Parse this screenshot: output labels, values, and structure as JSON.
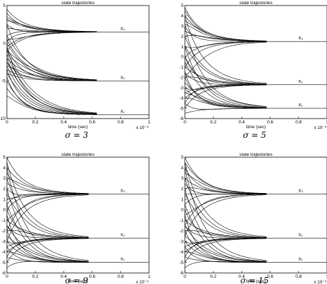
{
  "chart_data": [
    {
      "type": "line",
      "title": "state trajectories",
      "xlabel": "time (sec)",
      "x_exponent_label": "x 10⁻³",
      "caption": "σ = 3",
      "xlim": [
        0,
        1
      ],
      "ylim": [
        -10,
        5
      ],
      "xticks": [
        "0",
        "0.2",
        "0.4",
        "0.6",
        "0.8",
        "1"
      ],
      "yticks": [
        "-10",
        "-5",
        "0",
        "5"
      ],
      "grid": false,
      "steady_states": [
        {
          "name": "x₃",
          "value": 1.5
        },
        {
          "name": "x₂",
          "value": -5
        },
        {
          "name": "x₁",
          "value": -9.5
        }
      ],
      "settling_time": 0.55,
      "initial_values": [
        [
          4.5,
          3.5,
          3.0,
          2.5,
          2.0,
          1.0,
          0.5,
          -0.5,
          -1.0,
          4.0,
          3.2,
          0.2
        ],
        [
          0.5,
          -2.0,
          -3.0,
          -0.5,
          1.0,
          -1.5,
          -2.5,
          -4.0,
          -1.0,
          2.5,
          -3.5,
          0.0
        ],
        [
          -2.0,
          -3.0,
          -4.0,
          -4.5,
          -1.5,
          -2.5,
          -3.5,
          -5.0,
          -1.0,
          -0.5,
          -6.0,
          -7.0
        ]
      ]
    },
    {
      "type": "line",
      "title": "state trajectories",
      "xlabel": "time (sec)",
      "x_exponent_label": "x 10⁻³",
      "caption": "σ = 5",
      "xlim": [
        0,
        1
      ],
      "ylim": [
        -6,
        5
      ],
      "xticks": [
        "0",
        "0.2",
        "0.4",
        "0.6",
        "0.8",
        "1"
      ],
      "yticks": [
        "-6",
        "-5",
        "-4",
        "-3",
        "-2",
        "-1",
        "0",
        "1",
        "2",
        "3",
        "4",
        "5"
      ],
      "grid": false,
      "steady_states": [
        {
          "name": "x₃",
          "value": 1.5
        },
        {
          "name": "x₂",
          "value": -2.7
        },
        {
          "name": "x₁",
          "value": -5
        }
      ],
      "settling_time": 0.5,
      "initial_values": [
        [
          4.8,
          4.0,
          3.5,
          3.0,
          2.5,
          2.0,
          1.0,
          0.0,
          -1.0,
          -2.0,
          4.5,
          3.2
        ],
        [
          4.0,
          2.0,
          1.0,
          0.0,
          -1.0,
          -2.0,
          -3.0,
          -4.0,
          -5.0,
          -1.5,
          -3.5,
          -4.5
        ],
        [
          3.0,
          1.0,
          -0.5,
          -1.5,
          -2.5,
          -3.5,
          -4.5,
          -5.5,
          0.0,
          -2.0,
          -3.0,
          -4.0
        ]
      ]
    },
    {
      "type": "line",
      "title": "state trajectories",
      "xlabel": "time (sec)",
      "x_exponent_label": "x 10⁻³",
      "caption": "σ = 9",
      "xlim": [
        0,
        1
      ],
      "ylim": [
        -6,
        5
      ],
      "xticks": [
        "0",
        "0.2",
        "0.4",
        "0.6",
        "0.8",
        "1"
      ],
      "yticks": [
        "-6",
        "-5",
        "-4",
        "-3",
        "-2",
        "-1",
        "0",
        "1",
        "2",
        "3",
        "4",
        "5"
      ],
      "grid": false,
      "steady_states": [
        {
          "name": "x₃",
          "value": 1.5
        },
        {
          "name": "x₂",
          "value": -2.7
        },
        {
          "name": "x₁",
          "value": -5
        }
      ],
      "settling_time": 0.5,
      "initial_values": [
        [
          5.0,
          4.0,
          3.0,
          2.0,
          1.0,
          0.0,
          -1.0,
          -2.0,
          -3.0,
          3.5,
          2.5,
          0.5
        ],
        [
          4.5,
          3.0,
          1.5,
          0.0,
          -1.0,
          -2.0,
          -3.0,
          -4.0,
          -5.0,
          -1.5,
          -3.5,
          -4.5
        ],
        [
          4.0,
          2.0,
          0.5,
          -0.5,
          -1.5,
          -2.5,
          -3.5,
          -4.5,
          -5.5,
          -2.0,
          -3.0,
          -4.0
        ]
      ]
    },
    {
      "type": "line",
      "title": "state trajectories",
      "xlabel": "time (sec)",
      "x_exponent_label": "x 10⁻³",
      "caption": "σ = 15",
      "xlim": [
        0,
        1
      ],
      "ylim": [
        -6,
        5
      ],
      "xticks": [
        "0",
        "0.2",
        "0.4",
        "0.6",
        "0.8",
        "1"
      ],
      "yticks": [
        "-6",
        "-5",
        "-4",
        "-3",
        "-2",
        "-1",
        "0",
        "1",
        "2",
        "3",
        "4",
        "5"
      ],
      "grid": false,
      "steady_states": [
        {
          "name": "x₃",
          "value": 1.5
        },
        {
          "name": "x₂",
          "value": -2.7
        },
        {
          "name": "x₁",
          "value": -5
        }
      ],
      "settling_time": 0.5,
      "initial_values": [
        [
          5.0,
          4.5,
          3.5,
          2.5,
          1.5,
          0.5,
          -0.5,
          -1.5,
          -2.5,
          4.0,
          3.0,
          2.0
        ],
        [
          4.5,
          3.0,
          1.5,
          0.0,
          -1.0,
          -2.0,
          -3.0,
          -4.0,
          -5.0,
          -1.5,
          -3.5,
          -4.5
        ],
        [
          4.0,
          2.0,
          0.5,
          -0.5,
          -1.5,
          -2.5,
          -3.5,
          -4.5,
          -5.5,
          -2.0,
          -3.0,
          -4.0
        ]
      ]
    }
  ]
}
